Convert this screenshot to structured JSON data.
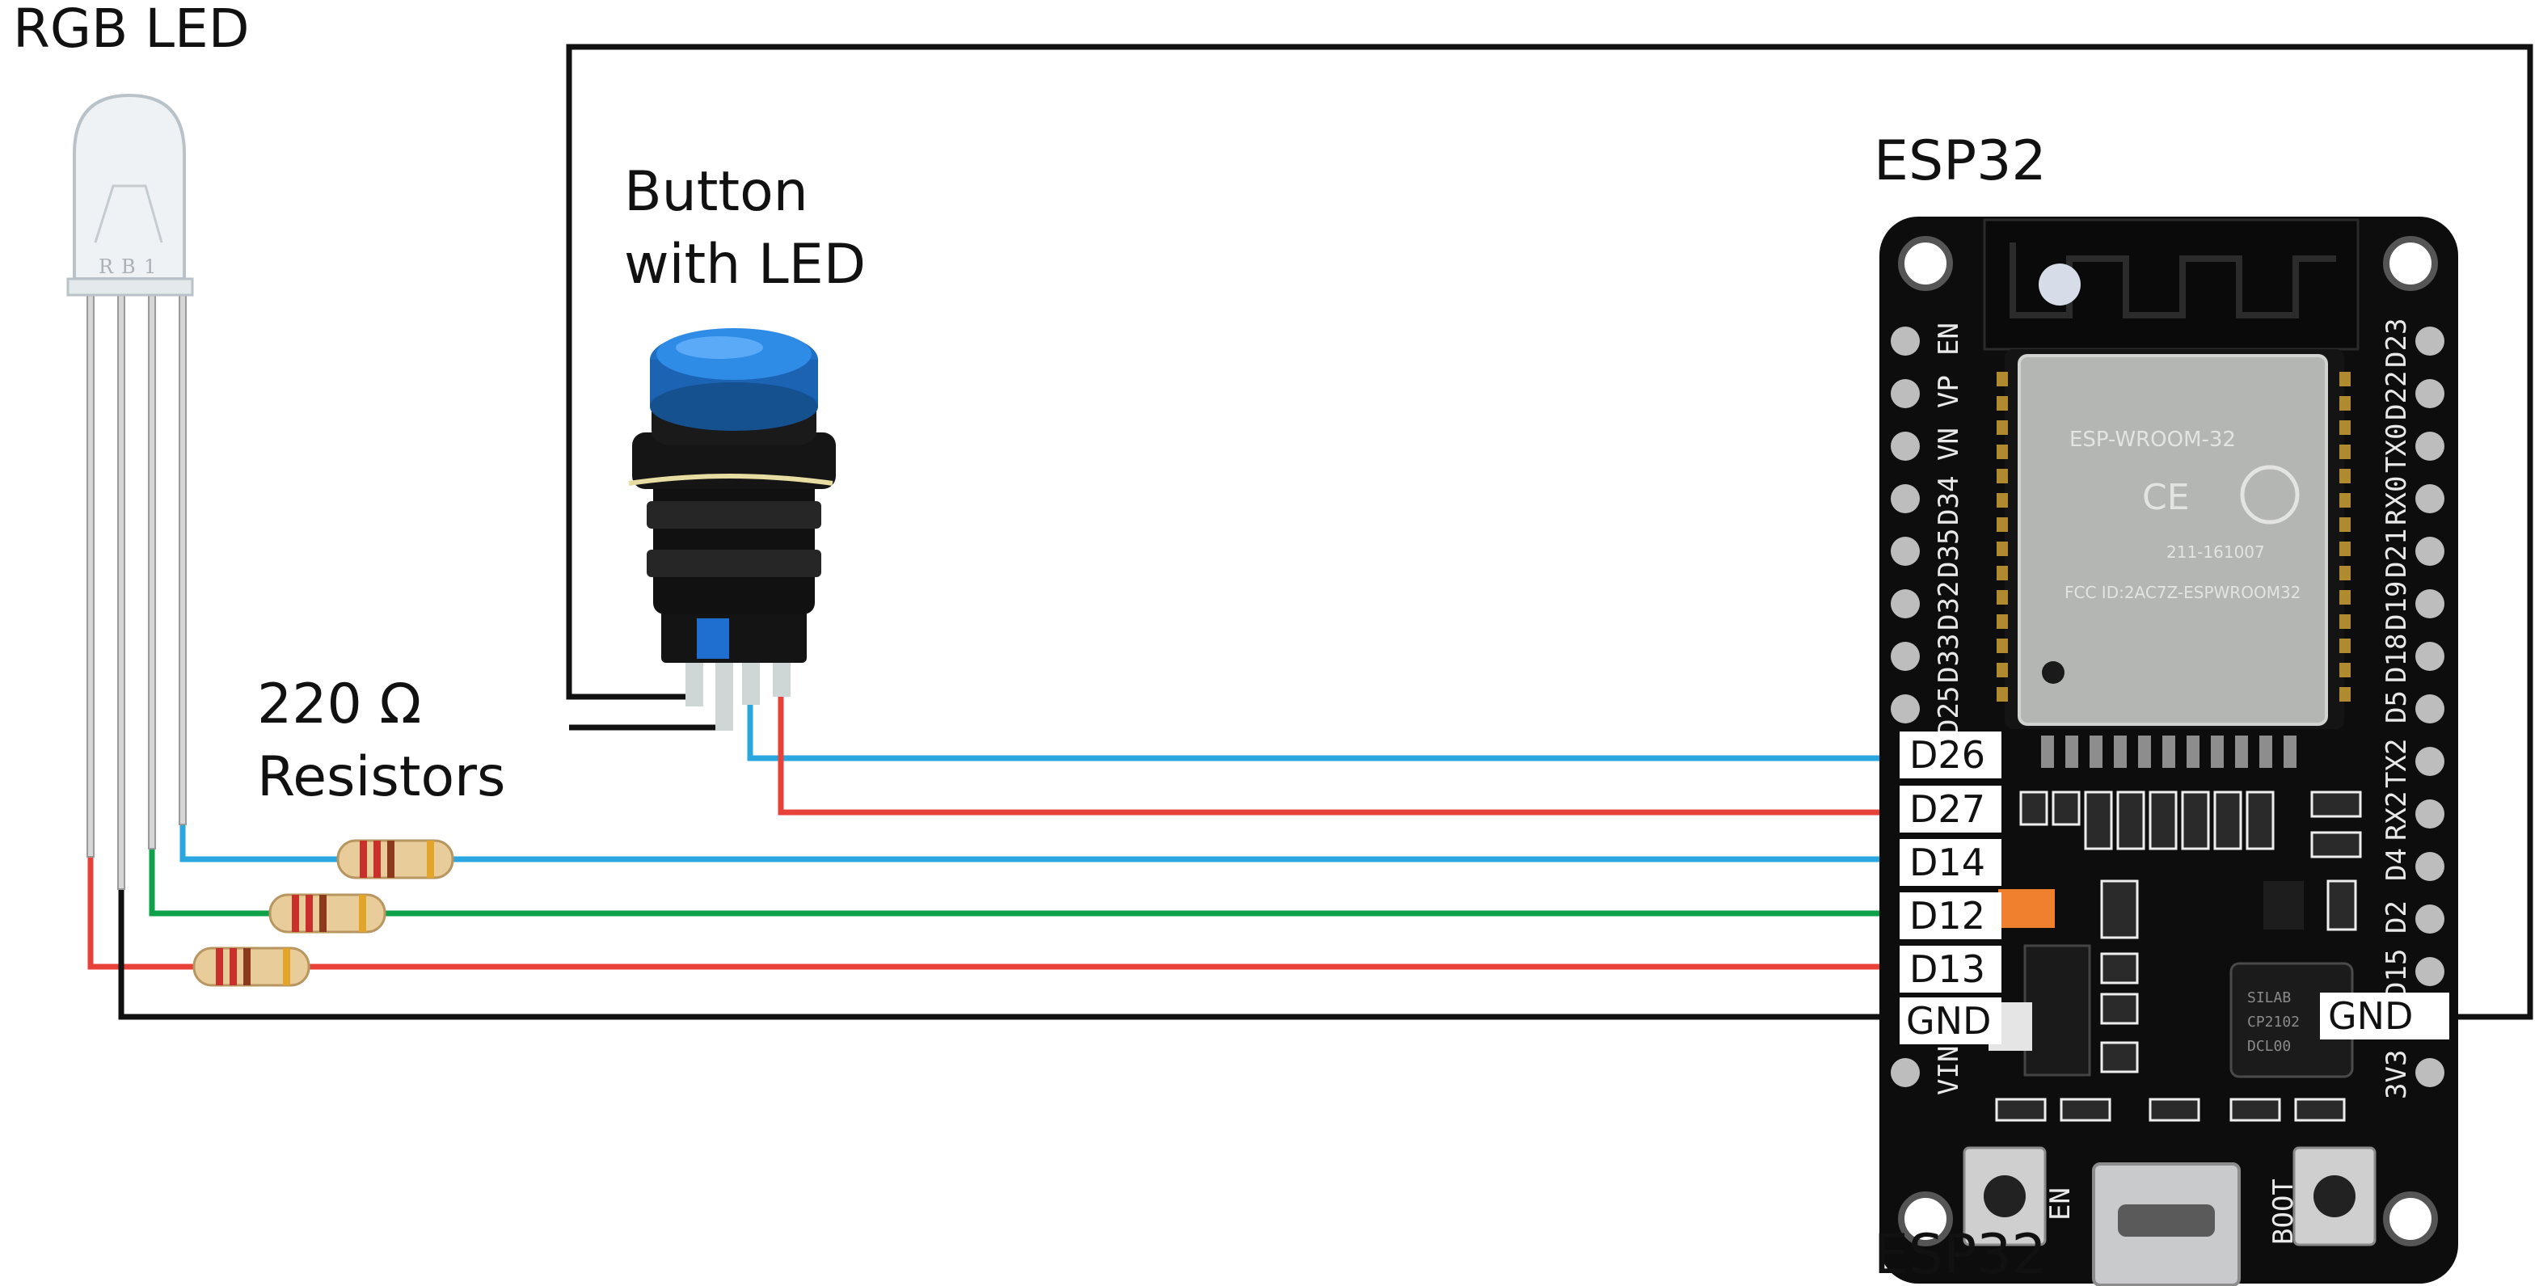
{
  "labels": {
    "rgb_led": "RGB LED",
    "button_line1": "Button",
    "button_line2": "with LED",
    "resistor_line1": "220 Ω",
    "resistor_line2": "Resistors",
    "esp32": "ESP32"
  },
  "pins": {
    "d26": "D26",
    "d27": "D27",
    "d14": "D14",
    "d12": "D12",
    "d13": "D13",
    "gnd_left": "GND",
    "gnd_right": "GND"
  },
  "silkscreen": {
    "left": [
      "EN",
      "VP",
      "VN",
      "D34",
      "D35",
      "D32",
      "D33",
      "D25",
      "VIN"
    ],
    "right": [
      "D23",
      "D22",
      "TX0",
      "RX0",
      "D21",
      "D19",
      "D18",
      "D5",
      "TX2",
      "RX2",
      "D4",
      "D2",
      "D15",
      "3V3"
    ],
    "en_button": "EN",
    "boot_button": "BOOT"
  },
  "wire_colors": {
    "blue": "#29a7de",
    "red": "#e8413a",
    "green": "#0ea14a",
    "black": "#111111"
  },
  "icons": {
    "rgb_led": "rgb-led-icon",
    "push_button": "push-button-icon",
    "resistor": "resistor-icon",
    "board": "esp32-board-icon"
  }
}
